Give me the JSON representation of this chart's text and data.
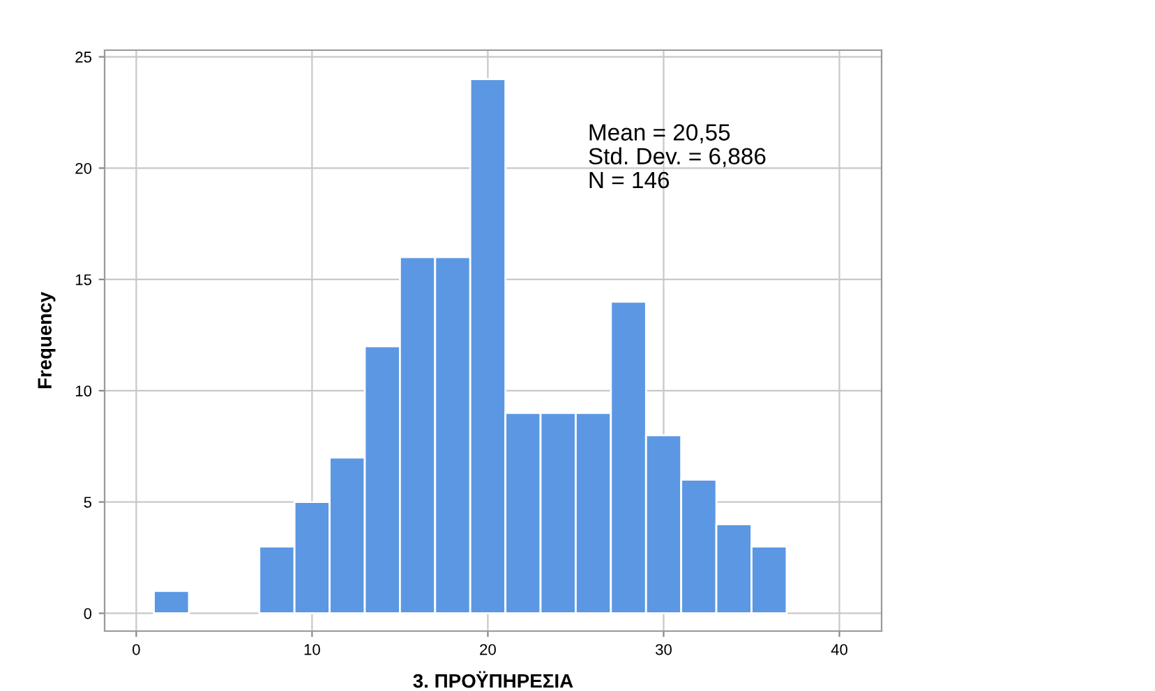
{
  "chart_data": {
    "type": "histogram",
    "xlabel": "3. ΠΡΟΫΠΗΡΕΣΙΑ",
    "ylabel": "Frequency",
    "bins": [
      1,
      3,
      5,
      7,
      9,
      11,
      13,
      15,
      17,
      19,
      21,
      23,
      25,
      27,
      29,
      31,
      33,
      35,
      37
    ],
    "values": [
      1,
      0,
      0,
      3,
      5,
      7,
      12,
      16,
      16,
      24,
      9,
      9,
      9,
      14,
      8,
      6,
      4,
      3
    ],
    "color": "#5b97e3",
    "xlim": [
      -1.8,
      42.4
    ],
    "xticks": [
      0,
      10,
      20,
      30,
      40
    ],
    "ylim": [
      -0.8,
      25.3
    ],
    "yticks": [
      0,
      5,
      10,
      15,
      20,
      25
    ],
    "grid": true,
    "annotations": [
      "Mean = 20,55",
      "Std. Dev. = 6,886",
      "N = 146"
    ]
  }
}
